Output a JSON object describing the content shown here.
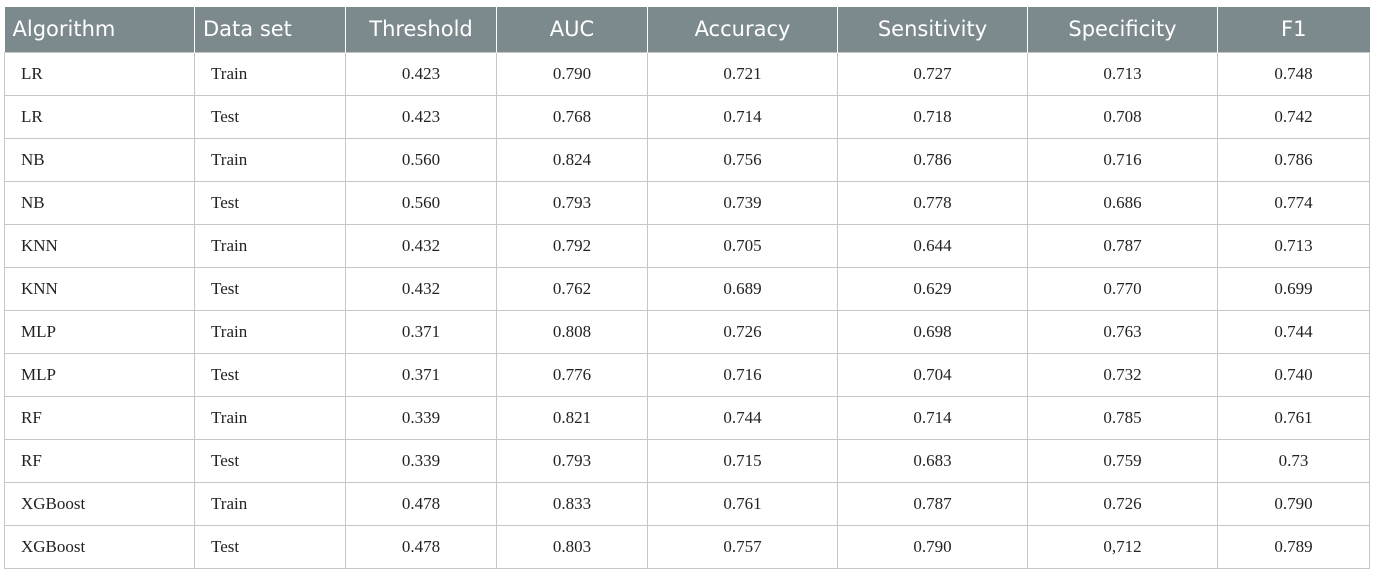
{
  "table": {
    "headers": [
      "Algorithm",
      "Data set",
      "Threshold",
      "AUC",
      "Accuracy",
      "Sensitivity",
      "Specificity",
      "F1"
    ],
    "rows": [
      [
        "LR",
        "Train",
        "0.423",
        "0.790",
        "0.721",
        "0.727",
        "0.713",
        "0.748"
      ],
      [
        "LR",
        "Test",
        "0.423",
        "0.768",
        "0.714",
        "0.718",
        "0.708",
        "0.742"
      ],
      [
        "NB",
        "Train",
        "0.560",
        "0.824",
        "0.756",
        "0.786",
        "0.716",
        "0.786"
      ],
      [
        "NB",
        "Test",
        "0.560",
        "0.793",
        "0.739",
        "0.778",
        "0.686",
        "0.774"
      ],
      [
        "KNN",
        "Train",
        "0.432",
        "0.792",
        "0.705",
        "0.644",
        "0.787",
        "0.713"
      ],
      [
        "KNN",
        "Test",
        "0.432",
        "0.762",
        "0.689",
        "0.629",
        "0.770",
        "0.699"
      ],
      [
        "MLP",
        "Train",
        "0.371",
        "0.808",
        "0.726",
        "0.698",
        "0.763",
        "0.744"
      ],
      [
        "MLP",
        "Test",
        "0.371",
        "0.776",
        "0.716",
        "0.704",
        "0.732",
        "0.740"
      ],
      [
        "RF",
        "Train",
        "0.339",
        "0.821",
        "0.744",
        "0.714",
        "0.785",
        "0.761"
      ],
      [
        "RF",
        "Test",
        "0.339",
        "0.793",
        "0.715",
        "0.683",
        "0.759",
        "0.73"
      ],
      [
        "XGBoost",
        "Train",
        "0.478",
        "0.833",
        "0.761",
        "0.787",
        "0.726",
        "0.790"
      ],
      [
        "XGBoost",
        "Test",
        "0.478",
        "0.803",
        "0.757",
        "0.790",
        "0,712",
        "0.789"
      ]
    ]
  },
  "colors": {
    "header_background": "#7c8a8e",
    "header_text": "#ffffff",
    "grid_line": "#c7c7c7"
  }
}
